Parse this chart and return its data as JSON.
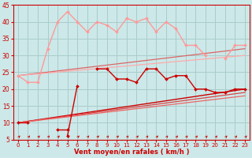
{
  "background_color": "#cce8e8",
  "grid_color": "#aacccc",
  "xlabel": "Vent moyen/en rafales ( km/h )",
  "xlim": [
    -0.5,
    23.5
  ],
  "ylim": [
    5,
    45
  ],
  "yticks": [
    5,
    10,
    15,
    20,
    25,
    30,
    35,
    40,
    45
  ],
  "xticks": [
    0,
    1,
    2,
    3,
    4,
    5,
    6,
    7,
    8,
    9,
    10,
    11,
    12,
    13,
    14,
    15,
    16,
    17,
    18,
    19,
    20,
    21,
    22,
    23
  ],
  "series": [
    {
      "x": [
        0,
        1,
        2,
        3,
        4,
        5,
        6,
        7,
        8,
        9,
        10,
        11,
        12,
        13,
        14,
        15,
        16,
        17,
        18,
        19,
        20,
        21,
        22,
        23
      ],
      "y": [
        24,
        22,
        22,
        32,
        40,
        43,
        40,
        37,
        40,
        39,
        37,
        41,
        40,
        41,
        37,
        40,
        38,
        33,
        33,
        30,
        null,
        29,
        33,
        33
      ],
      "color": "#ff9999",
      "linewidth": 1.0,
      "marker": "D",
      "markersize": 2.0,
      "linestyle": "-"
    },
    {
      "x": [
        0,
        1,
        2,
        3,
        4,
        5,
        6,
        7,
        8,
        9,
        10,
        11,
        12,
        13,
        14,
        15,
        16,
        17,
        18,
        19,
        20,
        21,
        22,
        23
      ],
      "y": [
        null,
        null,
        null,
        null,
        null,
        6,
        21,
        null,
        26,
        26,
        23,
        23,
        22,
        26,
        26,
        23,
        24,
        24,
        20,
        20,
        19,
        19,
        20,
        20
      ],
      "color": "#cc0000",
      "linewidth": 1.0,
      "marker": "D",
      "markersize": 2.0,
      "linestyle": "-"
    },
    {
      "x": [
        0,
        1,
        2,
        3,
        4,
        5
      ],
      "y": [
        10,
        10,
        null,
        null,
        8,
        8
      ],
      "color": "#cc0000",
      "linewidth": 1.0,
      "marker": "D",
      "markersize": 2.0,
      "linestyle": "-"
    },
    {
      "x": [
        0,
        23
      ],
      "y": [
        10,
        20
      ],
      "color": "#cc0000",
      "linewidth": 1.0,
      "marker": null,
      "linestyle": "-"
    },
    {
      "x": [
        0,
        23
      ],
      "y": [
        10,
        19
      ],
      "color": "#dd4444",
      "linewidth": 0.9,
      "marker": null,
      "linestyle": "-"
    },
    {
      "x": [
        0,
        23
      ],
      "y": [
        10,
        18
      ],
      "color": "#ee6666",
      "linewidth": 0.9,
      "marker": null,
      "linestyle": "-"
    },
    {
      "x": [
        0,
        23
      ],
      "y": [
        24,
        32
      ],
      "color": "#dd6666",
      "linewidth": 0.9,
      "marker": null,
      "linestyle": "-"
    },
    {
      "x": [
        0,
        23
      ],
      "y": [
        24,
        30
      ],
      "color": "#ffaaaa",
      "linewidth": 0.9,
      "marker": null,
      "linestyle": "-"
    }
  ],
  "xlabel_color": "#cc0000",
  "tick_color": "#cc0000",
  "axes_color": "#cc0000",
  "arrow_color": "#cc0000",
  "xlabel_fontsize": 6.0,
  "tick_fontsize_x": 5.0,
  "tick_fontsize_y": 5.5
}
